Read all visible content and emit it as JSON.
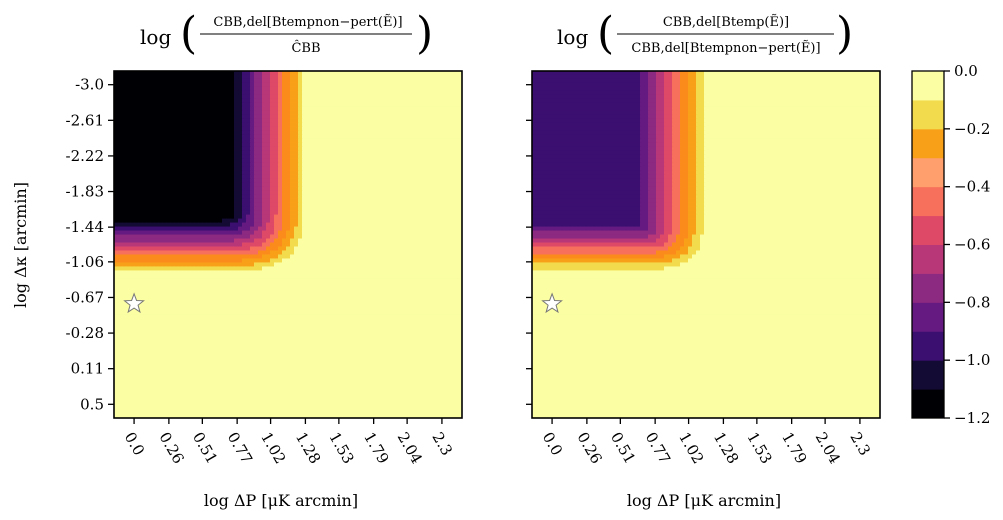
{
  "chart_data": [
    {
      "type": "heatmap",
      "title": "log ( C^{BB,del}[B^{temp}_{non-pert}(Ẽ)] / Ĉ^{BB} )",
      "title_parts": {
        "func": "log",
        "numerator": "CBB,del[Btempnon−pert(Ẽ)]",
        "denominator": "ĈBB"
      },
      "xlabel": "log ΔP [μK arcmin]",
      "ylabel": "log Δκ [arcmin]",
      "x_ticks": [
        "0.0",
        "0.26",
        "0.51",
        "0.77",
        "1.02",
        "1.28",
        "1.53",
        "1.79",
        "2.04",
        "2.3"
      ],
      "y_ticks": [
        "-3.0",
        "-2.61",
        "-2.22",
        "-1.83",
        "-1.44",
        "-1.06",
        "-0.67",
        "-0.28",
        "0.11",
        "0.5"
      ],
      "xlim": [
        -0.15,
        2.45
      ],
      "ylim": [
        0.65,
        -3.15
      ],
      "color_levels": [
        -1.2,
        -1.1,
        -1.0,
        -0.9,
        -0.8,
        -0.7,
        -0.6,
        -0.5,
        -0.4,
        -0.3,
        -0.2,
        -0.1,
        0.0
      ],
      "model": {
        "z_min": -1.35,
        "x_transition": 0.9,
        "y_transition": -1.35,
        "x_width": 0.7,
        "y_width": 0.75,
        "sharpness": 3
      },
      "marker": {
        "symbol": "star",
        "x": 0.0,
        "y": -0.6
      }
    },
    {
      "type": "heatmap",
      "title": "log ( C^{BB,del}[B^{temp}(Ẽ)] / C^{BB,del}[B^{temp}_{non-pert}(Ẽ)] )",
      "title_parts": {
        "func": "log",
        "numerator": "CBB,del[Btemp(Ẽ)]",
        "denominator": "CBB,del[Btempnon−pert(Ẽ)]"
      },
      "xlabel": "log ΔP [μK arcmin]",
      "ylabel": "",
      "x_ticks": [
        "0.0",
        "0.26",
        "0.51",
        "0.77",
        "1.02",
        "1.28",
        "1.53",
        "1.79",
        "2.04",
        "2.3"
      ],
      "y_ticks": [],
      "xlim": [
        -0.15,
        2.45
      ],
      "ylim": [
        0.65,
        -3.15
      ],
      "color_levels": [
        -1.2,
        -1.1,
        -1.0,
        -0.9,
        -0.8,
        -0.7,
        -0.6,
        -0.5,
        -0.4,
        -0.3,
        -0.2,
        -0.1,
        0.0
      ],
      "model": {
        "z_min": -0.95,
        "x_transition": 0.85,
        "y_transition": -1.25,
        "x_width": 0.55,
        "y_width": 0.55,
        "sharpness": 3
      },
      "marker": {
        "symbol": "star",
        "x": 0.0,
        "y": -0.6
      }
    }
  ],
  "colorbar": {
    "ticks": [
      "0.0",
      "−0.2",
      "−0.4",
      "−0.6",
      "−0.8",
      "−1.0",
      "−1.2"
    ],
    "range": [
      -1.2,
      0.0
    ],
    "colors": [
      "#000004",
      "#140b34",
      "#3b0f70",
      "#641a80",
      "#8c2981",
      "#b73779",
      "#de4968",
      "#f7705c",
      "#fe9f6d",
      "#f9a019",
      "#f2dc4d",
      "#fcfea4"
    ]
  },
  "colors": {
    "band_colors": [
      "#000004",
      "#140b34",
      "#3b0f70",
      "#641a80",
      "#8c2981",
      "#b73779",
      "#de4968",
      "#f7705c",
      "#fb8c1c",
      "#f9a019",
      "#f2dc4d",
      "#fbfea2"
    ],
    "marker_fill": "#ffffff",
    "marker_edge": "#777777"
  }
}
